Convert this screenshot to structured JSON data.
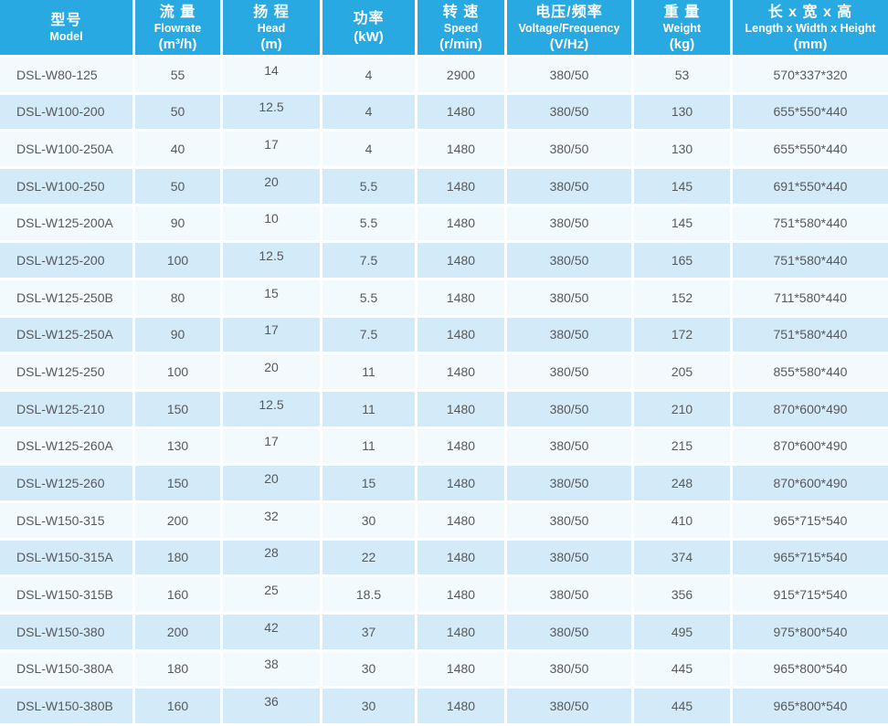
{
  "colors": {
    "header_background": "#29a9e1",
    "row_alt_blue": "#d3eaf8",
    "row_alt_light": "#f3fafd",
    "body_text": "#58595b",
    "header_text": "#ffffff",
    "gap_white": "#ffffff"
  },
  "table": {
    "columns": [
      {
        "id": "model",
        "zh": "型号",
        "en": "Model",
        "unit": ""
      },
      {
        "id": "flowrate",
        "zh": "流 量",
        "en": "Flowrate",
        "unit": "(m³/h)"
      },
      {
        "id": "head",
        "zh": "扬 程",
        "en": "Head",
        "unit": "(m)"
      },
      {
        "id": "power",
        "zh": "功率",
        "en": "",
        "unit": "(kW)"
      },
      {
        "id": "speed",
        "zh": "转 速",
        "en": "Speed",
        "unit": "(r/min)"
      },
      {
        "id": "voltage",
        "zh": "电压/频率",
        "en": "Voltage/Frequency",
        "unit": "(V/Hz)"
      },
      {
        "id": "weight",
        "zh": "重 量",
        "en": "Weight",
        "unit": "(kg)"
      },
      {
        "id": "dimensions",
        "zh": "长 x 宽 x 高",
        "en": "Length x Width x Height",
        "unit": "(mm)"
      }
    ],
    "rows": [
      [
        "DSL-W80-125",
        "55",
        "14",
        "4",
        "2900",
        "380/50",
        "53",
        "570*337*320"
      ],
      [
        "DSL-W100-200",
        "50",
        "12.5",
        "4",
        "1480",
        "380/50",
        "130",
        "655*550*440"
      ],
      [
        "DSL-W100-250A",
        "40",
        "17",
        "4",
        "1480",
        "380/50",
        "130",
        "655*550*440"
      ],
      [
        "DSL-W100-250",
        "50",
        "20",
        "5.5",
        "1480",
        "380/50",
        "145",
        "691*550*440"
      ],
      [
        "DSL-W125-200A",
        "90",
        "10",
        "5.5",
        "1480",
        "380/50",
        "145",
        "751*580*440"
      ],
      [
        "DSL-W125-200",
        "100",
        "12.5",
        "7.5",
        "1480",
        "380/50",
        "165",
        "751*580*440"
      ],
      [
        "DSL-W125-250B",
        "80",
        "15",
        "5.5",
        "1480",
        "380/50",
        "152",
        "711*580*440"
      ],
      [
        "DSL-W125-250A",
        "90",
        "17",
        "7.5",
        "1480",
        "380/50",
        "172",
        "751*580*440"
      ],
      [
        "DSL-W125-250",
        "100",
        "20",
        "11",
        "1480",
        "380/50",
        "205",
        "855*580*440"
      ],
      [
        "DSL-W125-210",
        "150",
        "12.5",
        "11",
        "1480",
        "380/50",
        "210",
        "870*600*490"
      ],
      [
        "DSL-W125-260A",
        "130",
        "17",
        "11",
        "1480",
        "380/50",
        "215",
        "870*600*490"
      ],
      [
        "DSL-W125-260",
        "150",
        "20",
        "15",
        "1480",
        "380/50",
        "248",
        "870*600*490"
      ],
      [
        "DSL-W150-315",
        "200",
        "32",
        "30",
        "1480",
        "380/50",
        "410",
        "965*715*540"
      ],
      [
        "DSL-W150-315A",
        "180",
        "28",
        "22",
        "1480",
        "380/50",
        "374",
        "965*715*540"
      ],
      [
        "DSL-W150-315B",
        "160",
        "25",
        "18.5",
        "1480",
        "380/50",
        "356",
        "915*715*540"
      ],
      [
        "DSL-W150-380",
        "200",
        "42",
        "37",
        "1480",
        "380/50",
        "495",
        "975*800*540"
      ],
      [
        "DSL-W150-380A",
        "180",
        "38",
        "30",
        "1480",
        "380/50",
        "445",
        "965*800*540"
      ],
      [
        "DSL-W150-380B",
        "160",
        "36",
        "30",
        "1480",
        "380/50",
        "445",
        "965*800*540"
      ]
    ]
  }
}
